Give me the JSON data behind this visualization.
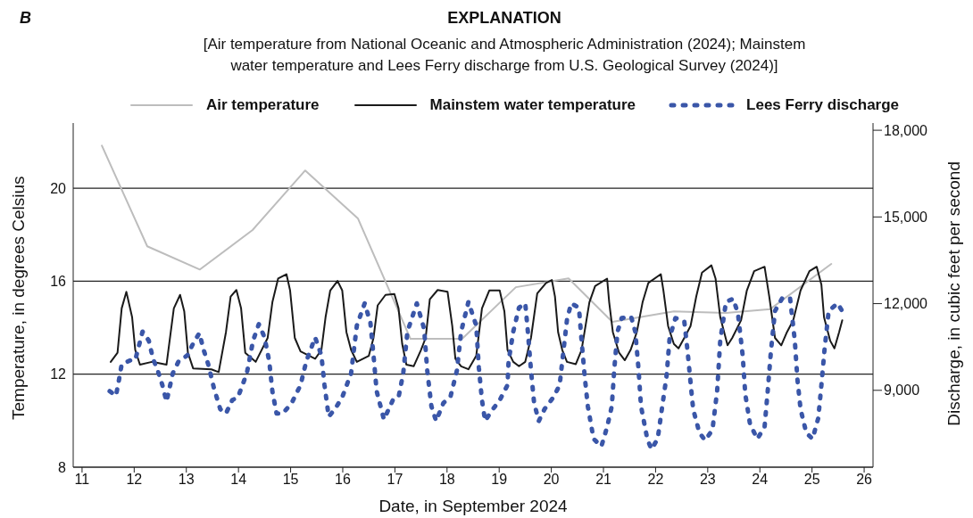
{
  "chart_data": {
    "type": "line",
    "legend_title": "EXPLANATION",
    "subtitle": "[Air temperature from National Oceanic and Atmospheric Administration (2024); Mainstem water temperature and Lees Ferry discharge from U.S. Geological Survey (2024)]",
    "annotations": [
      "B"
    ],
    "xlabel": "Date, in September 2024",
    "ylabel": "Temperature, in degrees Celsius",
    "y2label": "Discharge, in cubic feet per second",
    "xlim": [
      10.83,
      26.17
    ],
    "xticks": [
      11,
      12,
      13,
      14,
      15,
      16,
      17,
      18,
      19,
      20,
      21,
      22,
      23,
      24,
      25,
      26
    ],
    "ylim": [
      8,
      22.8
    ],
    "yticks": [
      8,
      12,
      16,
      20
    ],
    "y2lim": [
      6340,
      18250
    ],
    "y2ticks": [
      {
        "value": 9000,
        "label": "9,000"
      },
      {
        "value": 12000,
        "label": "12,000"
      },
      {
        "value": 15000,
        "label": "15,000"
      },
      {
        "value": 18000,
        "label": "18,000"
      }
    ],
    "grid": "y",
    "legend": "top",
    "marker": "none",
    "series": [
      {
        "name": "Air temperature",
        "color": "#bdbdbd",
        "line_style": "solid",
        "x": [
          11.38,
          12.25,
          13.26,
          14.27,
          15.28,
          16.29,
          17.3,
          18.29,
          19.32,
          20.33,
          21.17,
          22.35,
          23.35,
          24.2,
          25.37
        ],
        "values": [
          21.83,
          17.5,
          16.5,
          18.2,
          20.76,
          18.7,
          13.52,
          13.52,
          15.74,
          16.12,
          14.25,
          14.7,
          14.63,
          14.8,
          16.74
        ]
      },
      {
        "name": "Mainstem water temperature",
        "color": "#1a1a1a",
        "line_style": "solid",
        "x": [
          11.55,
          11.68,
          11.76,
          11.85,
          11.96,
          12.02,
          12.11,
          12.34,
          12.62,
          12.76,
          12.88,
          12.96,
          13.03,
          13.13,
          13.48,
          13.62,
          13.76,
          13.85,
          13.96,
          14.05,
          14.13,
          14.33,
          14.56,
          14.65,
          14.76,
          14.92,
          14.99,
          15.08,
          15.19,
          15.47,
          15.59,
          15.67,
          15.76,
          15.9,
          15.99,
          16.07,
          16.16,
          16.27,
          16.5,
          16.59,
          16.67,
          16.82,
          16.99,
          17.07,
          17.14,
          17.22,
          17.36,
          17.5,
          17.59,
          17.67,
          17.82,
          18.01,
          18.1,
          18.16,
          18.27,
          18.41,
          18.56,
          18.67,
          18.81,
          19.01,
          19.1,
          19.16,
          19.27,
          19.38,
          19.5,
          19.61,
          19.73,
          19.9,
          20.01,
          20.07,
          20.13,
          20.21,
          20.3,
          20.47,
          20.58,
          20.73,
          20.84,
          21.07,
          21.11,
          21.18,
          21.3,
          21.41,
          21.52,
          21.64,
          21.75,
          21.86,
          22.1,
          22.15,
          22.24,
          22.35,
          22.44,
          22.55,
          22.67,
          22.78,
          22.89,
          23.07,
          23.15,
          23.24,
          23.38,
          23.47,
          23.64,
          23.75,
          23.89,
          24.09,
          24.18,
          24.29,
          24.41,
          24.52,
          24.64,
          24.78,
          24.95,
          25.09,
          25.18,
          25.23,
          25.35,
          25.43,
          25.52,
          25.58
        ],
        "values": [
          12.53,
          12.92,
          14.83,
          15.54,
          14.45,
          13.04,
          12.41,
          12.53,
          12.41,
          14.83,
          15.41,
          14.7,
          12.92,
          12.25,
          12.21,
          12.09,
          13.81,
          15.34,
          15.62,
          14.83,
          12.92,
          12.53,
          13.56,
          15.09,
          16.11,
          16.3,
          15.6,
          13.56,
          12.98,
          12.66,
          13.04,
          14.45,
          15.6,
          16.01,
          15.6,
          13.81,
          13.04,
          12.53,
          12.79,
          13.56,
          14.96,
          15.41,
          15.45,
          14.83,
          13.3,
          12.41,
          12.34,
          13.04,
          13.56,
          15.22,
          15.62,
          15.54,
          14.07,
          12.66,
          12.34,
          12.21,
          12.79,
          14.83,
          15.6,
          15.6,
          14.7,
          13.04,
          12.53,
          12.34,
          12.53,
          13.56,
          15.47,
          15.92,
          16.05,
          15.34,
          13.81,
          13.04,
          12.53,
          12.43,
          13.04,
          15.09,
          15.79,
          16.11,
          15.09,
          13.81,
          12.92,
          12.6,
          13.04,
          13.81,
          15.09,
          15.92,
          16.3,
          15.6,
          14.07,
          13.3,
          13.11,
          13.56,
          14.07,
          15.34,
          16.37,
          16.68,
          16.11,
          14.45,
          13.24,
          13.56,
          14.32,
          15.6,
          16.43,
          16.62,
          15.34,
          13.56,
          13.24,
          13.81,
          14.32,
          15.6,
          16.43,
          16.62,
          15.85,
          14.45,
          13.43,
          13.11,
          13.81,
          14.32
        ]
      },
      {
        "name": "Lees Ferry discharge",
        "color": "#3a56a8",
        "line_style": "dotted",
        "axis": "y2",
        "x": [
          11.53,
          11.65,
          11.71,
          11.76,
          11.94,
          12.02,
          12.16,
          12.28,
          12.36,
          12.45,
          12.54,
          12.62,
          12.74,
          12.85,
          13.02,
          13.13,
          13.25,
          13.33,
          13.42,
          13.53,
          13.65,
          13.76,
          13.88,
          13.99,
          14.16,
          14.28,
          14.39,
          14.5,
          14.59,
          14.65,
          14.73,
          14.85,
          15.02,
          15.19,
          15.3,
          15.47,
          15.59,
          15.65,
          15.73,
          15.85,
          15.99,
          16.16,
          16.27,
          16.42,
          16.53,
          16.59,
          16.65,
          16.79,
          16.96,
          17.07,
          17.16,
          17.24,
          17.42,
          17.56,
          17.62,
          17.7,
          17.79,
          17.93,
          18.07,
          18.19,
          18.27,
          18.41,
          18.56,
          18.61,
          18.67,
          18.73,
          18.84,
          19.01,
          19.16,
          19.18,
          19.27,
          19.38,
          19.5,
          19.55,
          19.61,
          19.67,
          19.76,
          19.87,
          20.04,
          20.16,
          20.21,
          20.3,
          20.38,
          20.53,
          20.58,
          20.64,
          20.7,
          20.81,
          20.96,
          21.07,
          21.16,
          21.21,
          21.27,
          21.35,
          21.53,
          21.61,
          21.67,
          21.72,
          21.84,
          21.92,
          22.04,
          22.12,
          22.21,
          22.27,
          22.38,
          22.55,
          22.61,
          22.67,
          22.72,
          22.84,
          22.95,
          23.09,
          23.18,
          23.24,
          23.35,
          23.49,
          23.58,
          23.67,
          23.72,
          23.81,
          23.95,
          24.09,
          24.15,
          24.21,
          24.29,
          24.44,
          24.58,
          24.67,
          24.72,
          24.78,
          24.89,
          25.01,
          25.12,
          25.18,
          25.24,
          25.32,
          25.49,
          25.61
        ],
        "values": [
          8970,
          8810,
          9380,
          9900,
          10050,
          10050,
          11030,
          10720,
          10100,
          9690,
          9180,
          8610,
          9590,
          10000,
          10210,
          10620,
          10980,
          10410,
          9900,
          9070,
          8350,
          8200,
          8660,
          8760,
          9590,
          10720,
          11290,
          10830,
          10000,
          8970,
          8200,
          8200,
          8560,
          9180,
          10000,
          10830,
          10210,
          9180,
          8090,
          8350,
          8760,
          9590,
          11240,
          12010,
          11340,
          10210,
          8970,
          7990,
          8660,
          8760,
          9590,
          11030,
          12010,
          11130,
          9690,
          8450,
          7940,
          8560,
          8810,
          9690,
          11030,
          12060,
          11240,
          9790,
          8660,
          7940,
          8250,
          8660,
          9180,
          10000,
          11030,
          11860,
          12010,
          11030,
          9690,
          8560,
          7940,
          8350,
          8760,
          9180,
          10000,
          11440,
          12010,
          11860,
          10720,
          9490,
          8450,
          7320,
          7060,
          7730,
          8450,
          9790,
          11030,
          11500,
          11550,
          11030,
          9790,
          8450,
          7320,
          6960,
          7320,
          8350,
          9490,
          10830,
          11500,
          11390,
          10410,
          9280,
          8350,
          7530,
          7270,
          7630,
          8970,
          10720,
          12060,
          12170,
          11650,
          10210,
          8870,
          7840,
          7320,
          7730,
          8970,
          10310,
          11750,
          12220,
          12170,
          10720,
          9380,
          8350,
          7530,
          7320,
          8040,
          9180,
          10410,
          11750,
          12010,
          11650
        ]
      }
    ]
  }
}
